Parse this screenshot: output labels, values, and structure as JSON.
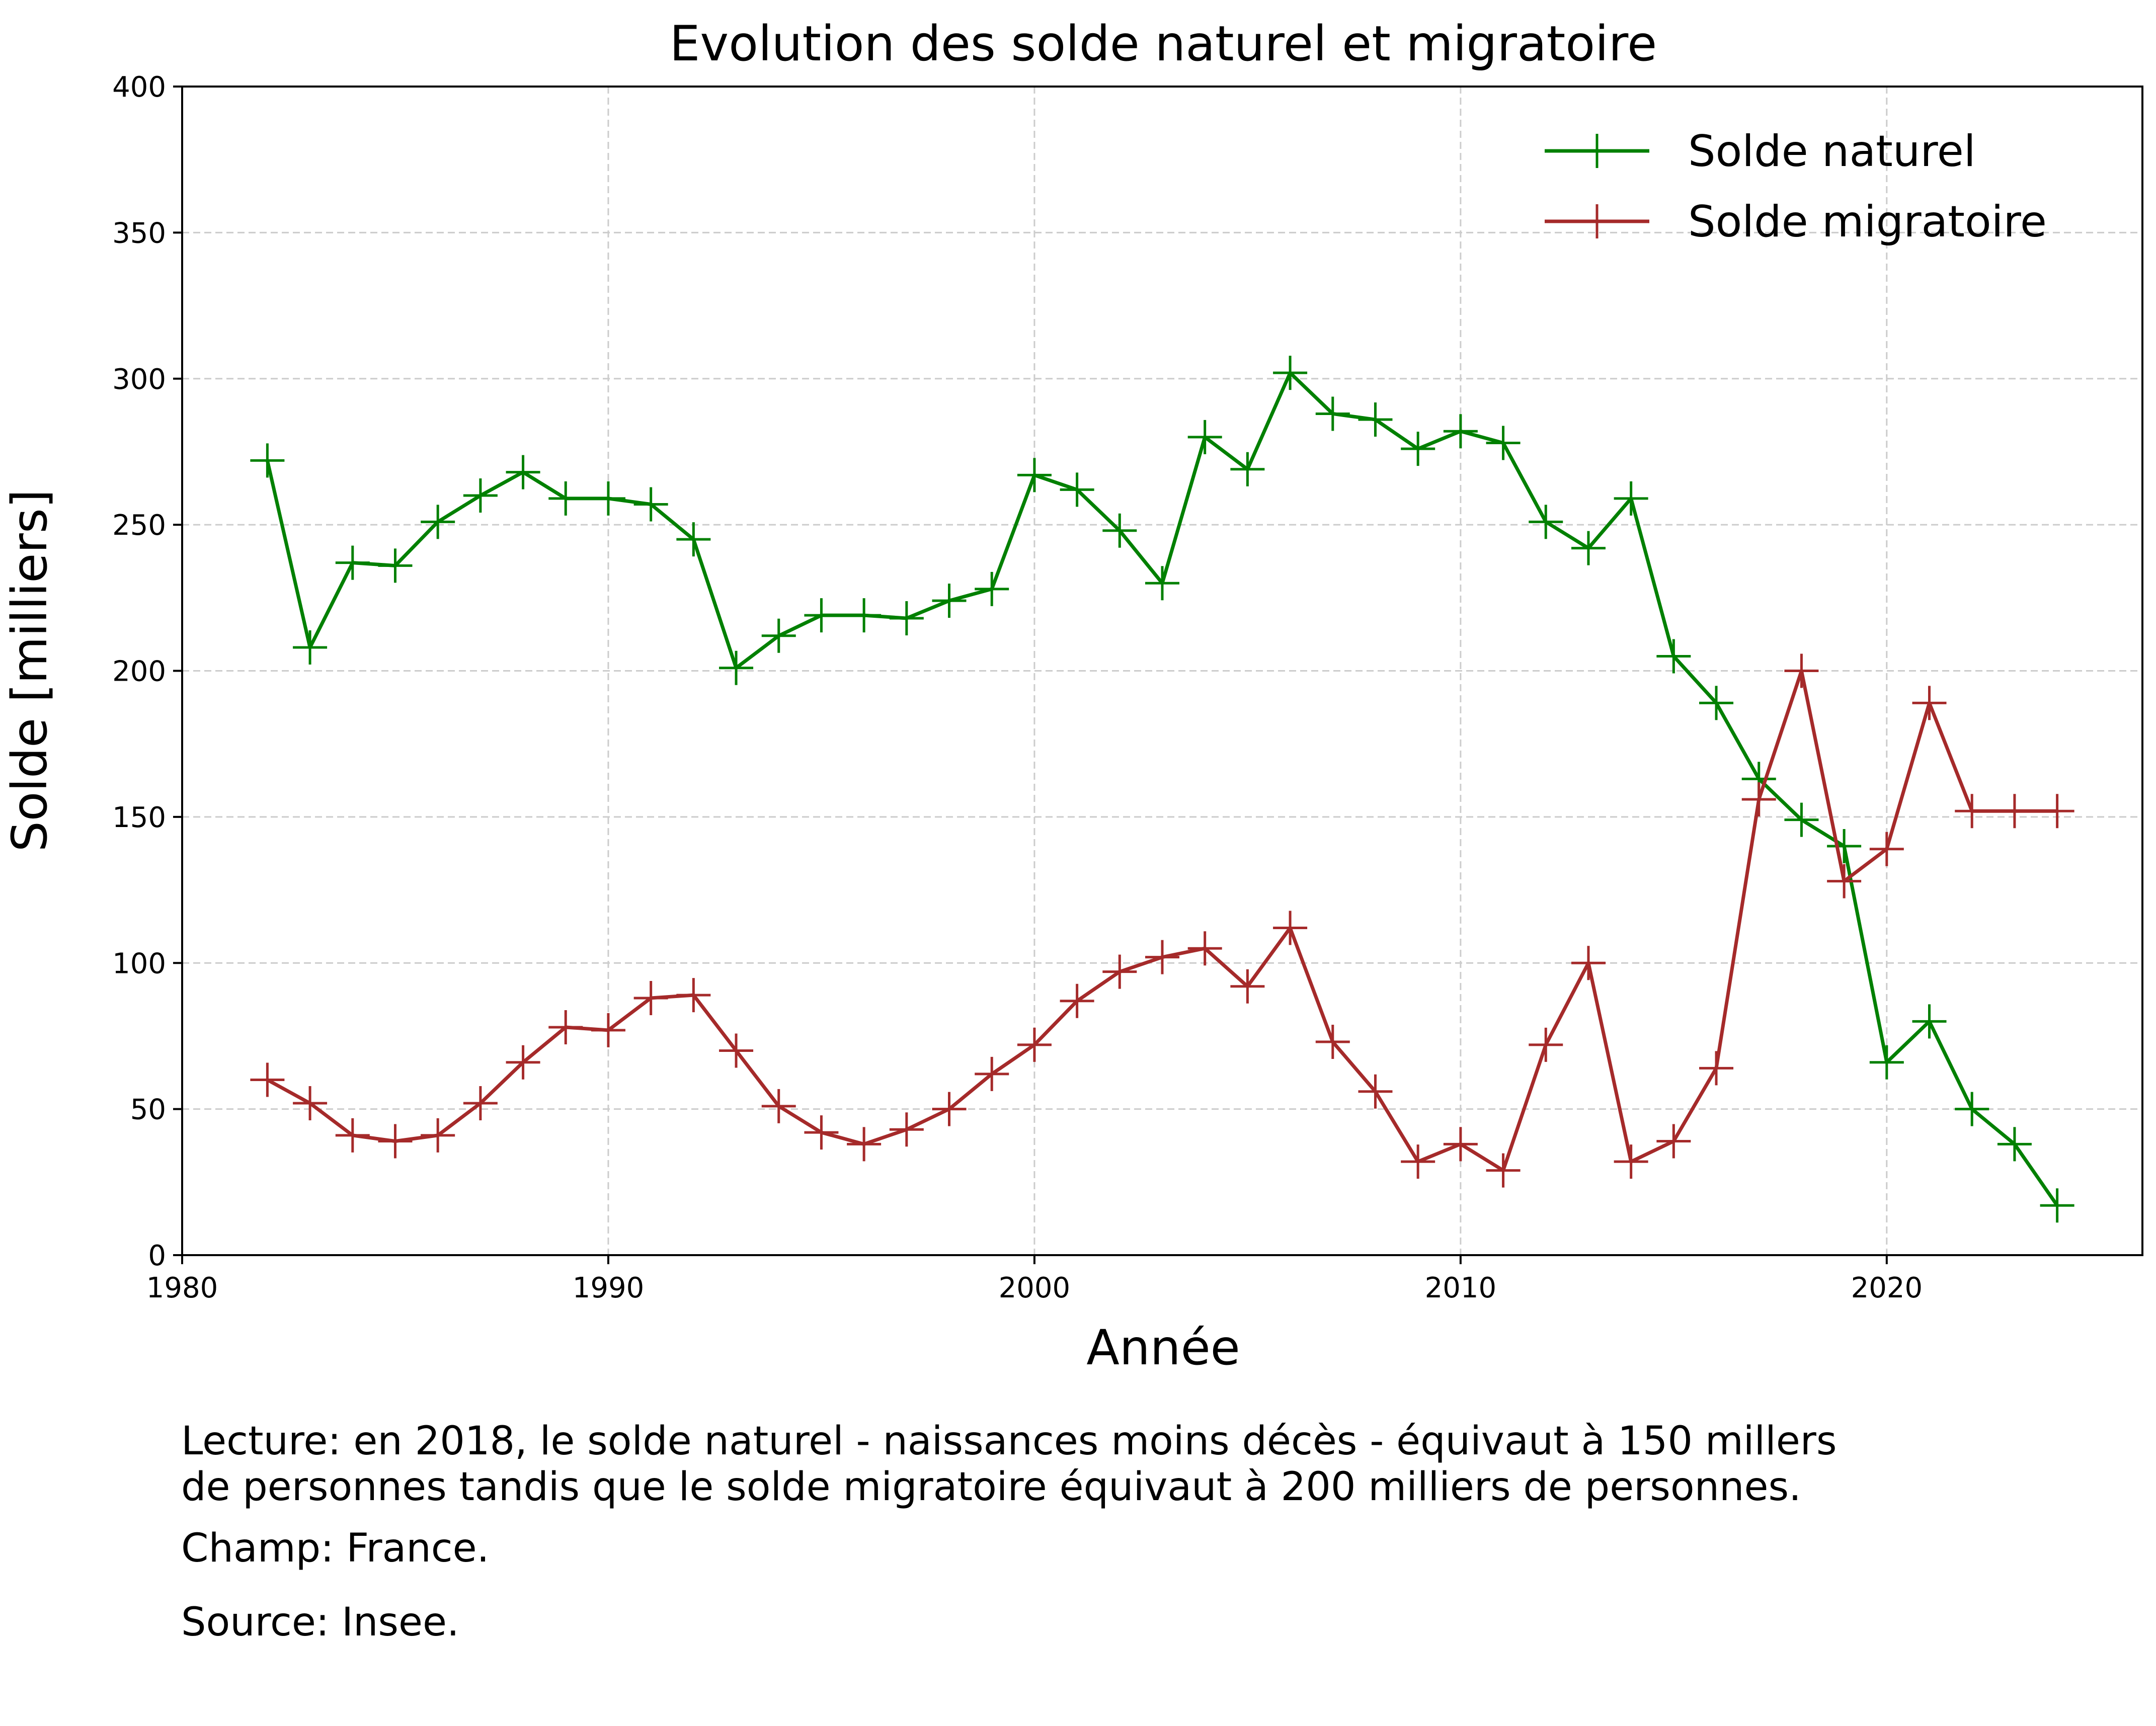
{
  "chart_data": {
    "type": "line",
    "title": "Evolution des solde naturel et migratoire",
    "xlabel": "Année",
    "ylabel": "Solde [milliers]",
    "xlim": [
      1980,
      2026
    ],
    "ylim": [
      0,
      400
    ],
    "xticks": [
      1980,
      1990,
      2000,
      2010,
      2020
    ],
    "yticks": [
      0,
      50,
      100,
      150,
      200,
      250,
      300,
      350,
      400
    ],
    "grid": true,
    "legend_position": "top-right",
    "x": [
      1982,
      1983,
      1984,
      1985,
      1986,
      1987,
      1988,
      1989,
      1990,
      1991,
      1992,
      1993,
      1994,
      1995,
      1996,
      1997,
      1998,
      1999,
      2000,
      2001,
      2002,
      2003,
      2004,
      2005,
      2006,
      2007,
      2008,
      2009,
      2010,
      2011,
      2012,
      2013,
      2014,
      2015,
      2016,
      2017,
      2018,
      2019,
      2020,
      2021,
      2022,
      2023,
      2024
    ],
    "series": [
      {
        "name": "Solde naturel",
        "color": "#008000",
        "marker": "+",
        "values": [
          272,
          208,
          237,
          236,
          251,
          260,
          268,
          259,
          259,
          257,
          245,
          201,
          212,
          219,
          219,
          218,
          224,
          228,
          267,
          262,
          248,
          230,
          280,
          269,
          302,
          288,
          286,
          276,
          282,
          278,
          251,
          242,
          259,
          205,
          189,
          163,
          149,
          140,
          66,
          80,
          50,
          38,
          17
        ]
      },
      {
        "name": "Solde migratoire",
        "color": "#a52a2a",
        "marker": "+",
        "values": [
          60,
          52,
          41,
          39,
          41,
          52,
          66,
          78,
          77,
          88,
          89,
          70,
          51,
          42,
          38,
          43,
          50,
          62,
          72,
          87,
          97,
          102,
          105,
          92,
          112,
          73,
          56,
          32,
          38,
          29,
          72,
          100,
          32,
          39,
          64,
          156,
          200,
          128,
          139,
          189,
          152,
          152,
          152
        ]
      }
    ]
  },
  "notes": {
    "lecture_line1": "Lecture: en 2018, le solde naturel - naissances moins décès - équivaut à 150 millers",
    "lecture_line2": "de personnes tandis que le solde migratoire équivaut à 200 milliers de personnes.",
    "champ": "Champ: France.",
    "source": "Source: Insee."
  }
}
